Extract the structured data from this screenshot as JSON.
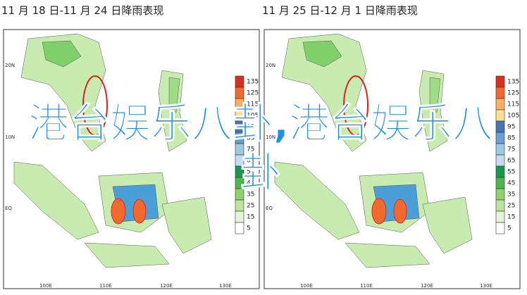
{
  "panels": [
    {
      "title": "11 月 18 日-11 月 24 日降雨表现"
    },
    {
      "title": "11 月 25 日-12 月 1 日降雨表现"
    }
  ],
  "lat_labels": [
    "20N",
    "10N",
    "EQ"
  ],
  "lon_labels": [
    "100E",
    "110E",
    "120E",
    "130E"
  ],
  "legend": {
    "labels": [
      "135",
      "125",
      "115",
      "105",
      "95",
      "85",
      "75",
      "65",
      "55",
      "45",
      "35",
      "25",
      "15",
      "5"
    ],
    "colors": [
      "#d7301f",
      "#f26a2e",
      "#fdae61",
      "#fee090",
      "#4575b4",
      "#6a9fd4",
      "#9ecae1",
      "#c6dbef",
      "#1a9850",
      "#4cb84c",
      "#8fd16a",
      "#bde5a0",
      "#e5f5d8",
      "#ffffff"
    ]
  },
  "overlay": "港台娱乐八卦,港台娱乐八卦"
}
